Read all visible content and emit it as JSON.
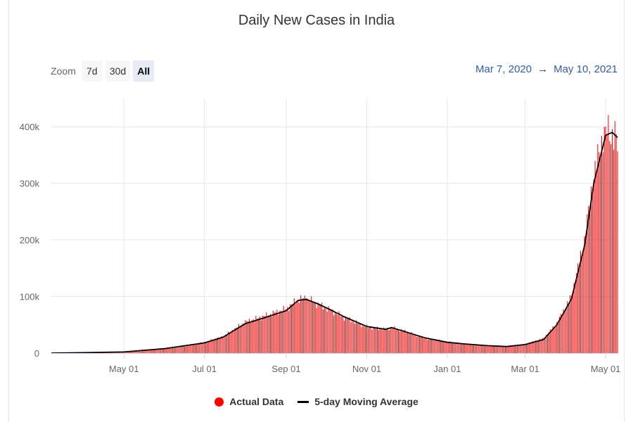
{
  "chart": {
    "title": "Daily New Cases in India",
    "zoom": {
      "label": "Zoom",
      "buttons": [
        {
          "label": "7d",
          "active": false
        },
        {
          "label": "30d",
          "active": false
        },
        {
          "label": "All",
          "active": true
        }
      ]
    },
    "range": {
      "from": "Mar 7, 2020",
      "separator": "→",
      "to": "May 10, 2021"
    },
    "legend": {
      "actual": "Actual Data",
      "moving_average": "5-day Moving Average"
    },
    "colors": {
      "bars": "#ff0000",
      "line": "#000000",
      "grid": "#e6e6e6",
      "axis": "#ccd6eb"
    }
  },
  "chart_data": {
    "type": "bar",
    "title": "Daily New Cases in India",
    "xlabel": "",
    "ylabel": "",
    "x_range": [
      "2020-03-07",
      "2021-05-10"
    ],
    "ylim": [
      0,
      450000
    ],
    "y_ticks": [
      0,
      100000,
      200000,
      300000,
      400000
    ],
    "y_tick_labels": [
      "0",
      "100k",
      "200k",
      "300k",
      "400k"
    ],
    "x_ticks": [
      "2020-05-01",
      "2020-07-01",
      "2020-09-01",
      "2020-11-01",
      "2021-01-01",
      "2021-03-01",
      "2021-05-01"
    ],
    "x_tick_labels": [
      "May 01",
      "Jul 01",
      "Sep 01",
      "Nov 01",
      "Jan 01",
      "Mar 01",
      "May 01"
    ],
    "grid": "vertical and horizontal",
    "legend_position": "bottom-center",
    "series": [
      {
        "name": "Actual Data",
        "type": "bar",
        "color": "#ff0000",
        "knots": [
          [
            "2020-03-07",
            50
          ],
          [
            "2020-03-25",
            600
          ],
          [
            "2020-04-15",
            1000
          ],
          [
            "2020-05-01",
            2300
          ],
          [
            "2020-05-15",
            3900
          ],
          [
            "2020-06-01",
            8200
          ],
          [
            "2020-06-15",
            11500
          ],
          [
            "2020-07-01",
            19000
          ],
          [
            "2020-07-15",
            29000
          ],
          [
            "2020-08-01",
            55000
          ],
          [
            "2020-08-15",
            65000
          ],
          [
            "2020-09-01",
            78000
          ],
          [
            "2020-09-10",
            95000
          ],
          [
            "2020-09-16",
            97000
          ],
          [
            "2020-09-25",
            86000
          ],
          [
            "2020-10-05",
            75000
          ],
          [
            "2020-10-15",
            63000
          ],
          [
            "2020-11-01",
            46000
          ],
          [
            "2020-11-15",
            42000
          ],
          [
            "2020-11-20",
            45000
          ],
          [
            "2020-12-01",
            38000
          ],
          [
            "2020-12-15",
            26000
          ],
          [
            "2021-01-01",
            20000
          ],
          [
            "2021-01-15",
            16000
          ],
          [
            "2021-02-01",
            13000
          ],
          [
            "2021-02-15",
            11500
          ],
          [
            "2021-03-01",
            15500
          ],
          [
            "2021-03-15",
            26000
          ],
          [
            "2021-03-25",
            53000
          ],
          [
            "2021-04-05",
            100000
          ],
          [
            "2021-04-15",
            200000
          ],
          [
            "2021-04-22",
            315000
          ],
          [
            "2021-05-01",
            402000
          ],
          [
            "2021-05-10",
            370000
          ]
        ],
        "notable_points": [
          [
            "2021-05-08",
            410000
          ],
          [
            "2021-05-01",
            400000
          ],
          [
            "2020-09-16",
            97000
          ]
        ]
      },
      {
        "name": "5-day Moving Average",
        "type": "line",
        "color": "#000000",
        "values": [
          [
            "2020-03-07",
            50
          ],
          [
            "2020-04-01",
            800
          ],
          [
            "2020-05-01",
            2000
          ],
          [
            "2020-06-01",
            8000
          ],
          [
            "2020-07-01",
            18000
          ],
          [
            "2020-07-15",
            28000
          ],
          [
            "2020-08-01",
            52000
          ],
          [
            "2020-08-15",
            62000
          ],
          [
            "2020-09-01",
            75000
          ],
          [
            "2020-09-10",
            93000
          ],
          [
            "2020-09-16",
            95000
          ],
          [
            "2020-09-25",
            87000
          ],
          [
            "2020-10-05",
            76000
          ],
          [
            "2020-10-15",
            64000
          ],
          [
            "2020-11-01",
            47000
          ],
          [
            "2020-11-15",
            42000
          ],
          [
            "2020-11-20",
            45000
          ],
          [
            "2020-12-01",
            37000
          ],
          [
            "2020-12-15",
            27000
          ],
          [
            "2021-01-01",
            19000
          ],
          [
            "2021-01-15",
            16000
          ],
          [
            "2021-02-01",
            13000
          ],
          [
            "2021-02-15",
            11500
          ],
          [
            "2021-03-01",
            15000
          ],
          [
            "2021-03-15",
            24000
          ],
          [
            "2021-03-25",
            50000
          ],
          [
            "2021-04-05",
            95000
          ],
          [
            "2021-04-15",
            190000
          ],
          [
            "2021-04-22",
            300000
          ],
          [
            "2021-05-01",
            385000
          ],
          [
            "2021-05-06",
            390000
          ],
          [
            "2021-05-10",
            381000
          ]
        ]
      }
    ]
  }
}
